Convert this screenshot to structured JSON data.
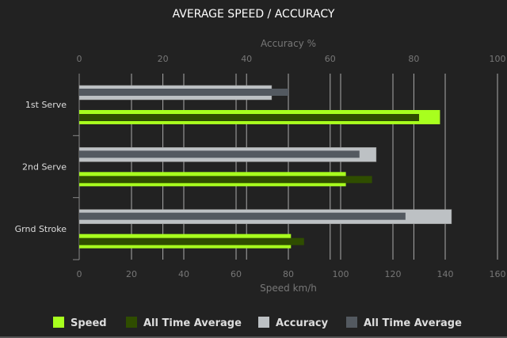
{
  "chart_data": {
    "type": "bar",
    "orientation": "horizontal",
    "title": "AVERAGE SPEED / ACCURACY",
    "categories": [
      "1st Serve",
      "2nd Serve",
      "Grnd Stroke"
    ],
    "x_bottom": {
      "label": "Speed km/h",
      "range": [
        0,
        160
      ],
      "ticks": [
        "0",
        "20",
        "40",
        "60",
        "80",
        "100",
        "120",
        "140",
        "160"
      ]
    },
    "x_top": {
      "label": "Accuracy %",
      "range": [
        0,
        100
      ],
      "ticks": [
        "0",
        "20",
        "40",
        "60",
        "80",
        "100"
      ]
    },
    "grid": true,
    "legend_position": "bottom",
    "series": [
      {
        "name": "Speed",
        "axis": "speed",
        "color": "#a8ff1e",
        "values": [
          138,
          102,
          81
        ]
      },
      {
        "name": "All Time Average",
        "axis": "speed",
        "color": "#2f4d00",
        "values": [
          130,
          112,
          86
        ]
      },
      {
        "name": "Accuracy",
        "axis": "accuracy",
        "color": "#bdc1c4",
        "values": [
          46,
          71,
          89
        ]
      },
      {
        "name": "All Time Average",
        "axis": "accuracy",
        "color": "#535960",
        "values": [
          50,
          67,
          78
        ]
      }
    ]
  }
}
